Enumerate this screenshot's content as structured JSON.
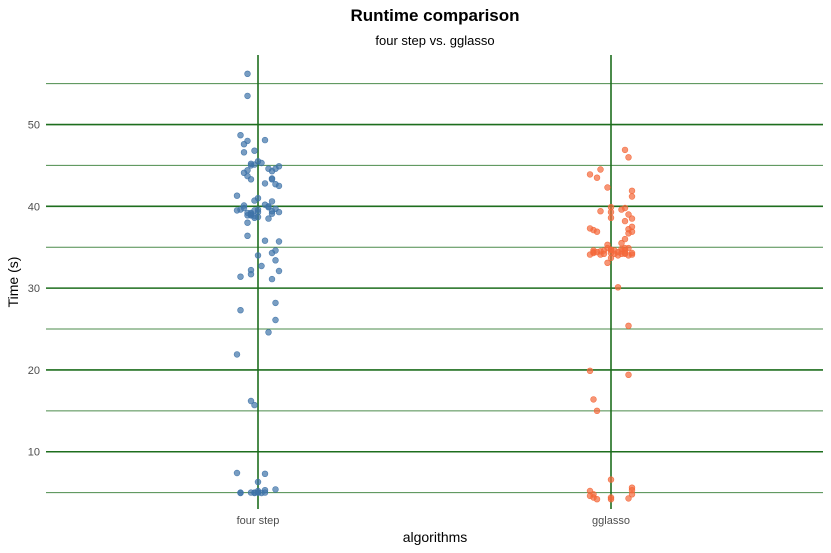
{
  "chart_data": {
    "type": "scatter",
    "title": "Runtime comparison",
    "subtitle": "four step vs. gglasso",
    "xlabel": "algorithms",
    "ylabel": "Time (s)",
    "categories": [
      "four step",
      "gglasso"
    ],
    "ylim": [
      3.0,
      58.5
    ],
    "yticks": [
      10,
      20,
      30,
      40,
      50
    ],
    "minor_yticks": [
      5,
      15,
      25,
      35,
      45,
      55
    ],
    "grid": true,
    "legend": "none",
    "colors": {
      "four step": "#3f73a8",
      "gglasso": "#f4683a",
      "grid": "#1e6e1e"
    },
    "series": [
      {
        "category": "four step",
        "points": [
          [
            -0.03,
            56.2
          ],
          [
            -0.03,
            53.5
          ],
          [
            -0.05,
            48.7
          ],
          [
            -0.03,
            48.0
          ],
          [
            0.02,
            48.1
          ],
          [
            -0.04,
            47.6
          ],
          [
            -0.01,
            46.8
          ],
          [
            -0.04,
            46.6
          ],
          [
            0.0,
            45.5
          ],
          [
            0.01,
            45.3
          ],
          [
            -0.01,
            45.1
          ],
          [
            -0.02,
            45.0
          ],
          [
            -0.02,
            45.2
          ],
          [
            0.06,
            44.9
          ],
          [
            0.05,
            44.6
          ],
          [
            0.03,
            44.6
          ],
          [
            0.04,
            44.3
          ],
          [
            -0.03,
            44.4
          ],
          [
            -0.04,
            44.1
          ],
          [
            -0.03,
            43.7
          ],
          [
            -0.02,
            43.3
          ],
          [
            0.04,
            43.4
          ],
          [
            0.04,
            43.3
          ],
          [
            0.02,
            42.8
          ],
          [
            0.05,
            42.7
          ],
          [
            0.06,
            42.5
          ],
          [
            -0.06,
            41.3
          ],
          [
            0.0,
            41.0
          ],
          [
            0.04,
            40.6
          ],
          [
            -0.01,
            40.7
          ],
          [
            0.02,
            40.2
          ],
          [
            0.03,
            40.0
          ],
          [
            -0.04,
            40.1
          ],
          [
            -0.04,
            39.8
          ],
          [
            -0.05,
            39.6
          ],
          [
            -0.06,
            39.5
          ],
          [
            0.0,
            39.6
          ],
          [
            0.05,
            39.7
          ],
          [
            0.03,
            39.9
          ],
          [
            0.04,
            39.4
          ],
          [
            -0.01,
            39.5
          ],
          [
            -0.02,
            39.2
          ],
          [
            0.0,
            39.3
          ],
          [
            0.06,
            39.3
          ],
          [
            0.04,
            39.1
          ],
          [
            -0.03,
            39.2
          ],
          [
            -0.02,
            38.9
          ],
          [
            -0.02,
            38.9
          ],
          [
            -0.03,
            38.9
          ],
          [
            -0.02,
            39.1
          ],
          [
            -0.01,
            38.8
          ],
          [
            -0.01,
            38.6
          ],
          [
            0.03,
            38.5
          ],
          [
            0.0,
            38.7
          ],
          [
            -0.03,
            38.0
          ],
          [
            -0.03,
            36.4
          ],
          [
            0.02,
            35.8
          ],
          [
            0.06,
            35.7
          ],
          [
            0.05,
            34.6
          ],
          [
            0.04,
            34.3
          ],
          [
            0.0,
            34.0
          ],
          [
            0.05,
            33.4
          ],
          [
            0.06,
            32.1
          ],
          [
            -0.02,
            32.2
          ],
          [
            0.01,
            32.7
          ],
          [
            -0.02,
            31.7
          ],
          [
            0.04,
            31.1
          ],
          [
            -0.05,
            31.4
          ],
          [
            0.05,
            28.2
          ],
          [
            -0.05,
            27.3
          ],
          [
            0.05,
            26.1
          ],
          [
            0.03,
            24.6
          ],
          [
            -0.06,
            21.9
          ],
          [
            -0.02,
            16.2
          ],
          [
            -0.01,
            15.7
          ],
          [
            -0.06,
            7.4
          ],
          [
            0.02,
            7.3
          ],
          [
            0.0,
            6.3
          ],
          [
            -0.05,
            5.0
          ],
          [
            -0.05,
            4.95
          ],
          [
            -0.02,
            5.0
          ],
          [
            -0.01,
            5.0
          ],
          [
            0.0,
            5.0
          ],
          [
            0.0,
            5.2
          ],
          [
            0.0,
            5.0
          ],
          [
            -0.01,
            4.95
          ],
          [
            0.01,
            4.95
          ],
          [
            0.02,
            5.3
          ],
          [
            0.02,
            5.0
          ],
          [
            0.05,
            5.4
          ]
        ]
      },
      {
        "category": "gglasso",
        "points": [
          [
            0.04,
            46.9
          ],
          [
            0.05,
            46.0
          ],
          [
            -0.03,
            44.5
          ],
          [
            -0.06,
            43.9
          ],
          [
            -0.04,
            43.5
          ],
          [
            -0.01,
            42.3
          ],
          [
            0.06,
            41.9
          ],
          [
            0.06,
            41.2
          ],
          [
            0.0,
            39.9
          ],
          [
            0.04,
            39.8
          ],
          [
            0.03,
            39.6
          ],
          [
            -0.03,
            39.4
          ],
          [
            0.0,
            39.3
          ],
          [
            0.05,
            39.0
          ],
          [
            0.04,
            38.2
          ],
          [
            0.06,
            38.5
          ],
          [
            0.0,
            38.6
          ],
          [
            0.06,
            37.5
          ],
          [
            0.05,
            37.2
          ],
          [
            -0.06,
            37.3
          ],
          [
            -0.05,
            37.1
          ],
          [
            -0.04,
            36.9
          ],
          [
            0.06,
            36.9
          ],
          [
            0.05,
            36.7
          ],
          [
            0.04,
            36.0
          ],
          [
            0.03,
            35.5
          ],
          [
            -0.01,
            35.3
          ],
          [
            -0.01,
            34.9
          ],
          [
            0.05,
            34.9
          ],
          [
            0.04,
            34.9
          ],
          [
            0.0,
            34.7
          ],
          [
            0.01,
            34.6
          ],
          [
            -0.02,
            34.6
          ],
          [
            -0.03,
            34.5
          ],
          [
            -0.04,
            34.4
          ],
          [
            -0.05,
            34.3
          ],
          [
            -0.06,
            34.1
          ],
          [
            0.06,
            34.1
          ],
          [
            0.05,
            34.0
          ],
          [
            0.06,
            34.3
          ],
          [
            0.02,
            34.4
          ],
          [
            0.03,
            34.5
          ],
          [
            0.04,
            34.6
          ],
          [
            -0.02,
            34.2
          ],
          [
            -0.03,
            34.1
          ],
          [
            -0.05,
            34.4
          ],
          [
            0.0,
            34.3
          ],
          [
            0.01,
            34.2
          ],
          [
            0.02,
            34.0
          ],
          [
            0.03,
            34.2
          ],
          [
            0.0,
            33.7
          ],
          [
            -0.01,
            33.1
          ],
          [
            -0.05,
            34.6
          ],
          [
            0.04,
            34.3
          ],
          [
            0.03,
            34.8
          ],
          [
            0.04,
            34.2
          ],
          [
            0.0,
            34.7
          ],
          [
            0.02,
            30.1
          ],
          [
            0.05,
            25.4
          ],
          [
            0.05,
            19.4
          ],
          [
            -0.06,
            19.9
          ],
          [
            -0.05,
            16.4
          ],
          [
            -0.04,
            15.0
          ],
          [
            0.0,
            6.6
          ],
          [
            -0.06,
            5.2
          ],
          [
            -0.06,
            4.6
          ],
          [
            -0.05,
            4.8
          ],
          [
            -0.05,
            4.4
          ],
          [
            -0.04,
            4.2
          ],
          [
            0.0,
            4.2
          ],
          [
            0.0,
            4.4
          ],
          [
            0.06,
            5.6
          ],
          [
            0.06,
            5.3
          ],
          [
            0.05,
            4.3
          ],
          [
            0.06,
            4.8
          ]
        ]
      }
    ]
  }
}
